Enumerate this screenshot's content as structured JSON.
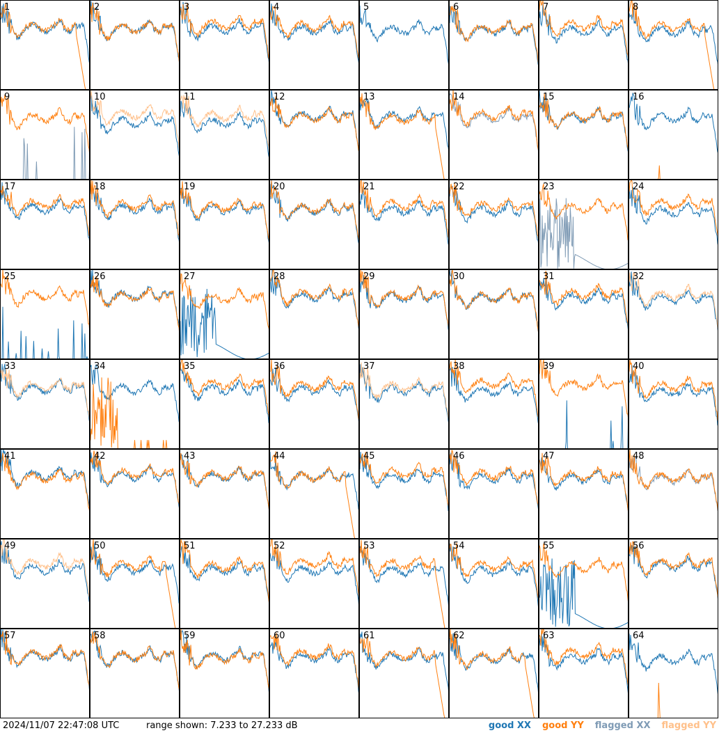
{
  "chart_data": {
    "type": "line",
    "panel_count": 64,
    "panels": [
      "1",
      "2",
      "3",
      "4",
      "5",
      "6",
      "7",
      "8",
      "9",
      "10",
      "11",
      "12",
      "13",
      "14",
      "15",
      "16",
      "17",
      "18",
      "19",
      "20",
      "21",
      "22",
      "23",
      "24",
      "25",
      "26",
      "27",
      "28",
      "29",
      "30",
      "31",
      "32",
      "33",
      "34",
      "35",
      "36",
      "37",
      "38",
      "39",
      "40",
      "41",
      "42",
      "43",
      "44",
      "45",
      "46",
      "47",
      "48",
      "49",
      "50",
      "51",
      "52",
      "53",
      "54",
      "55",
      "56",
      "57",
      "58",
      "59",
      "60",
      "61",
      "62",
      "63",
      "64"
    ],
    "ylim": [
      7.233,
      27.233
    ],
    "yunit": "dB",
    "grid": false,
    "legend_position": "bottom-right",
    "legend": [
      {
        "name": "good XX",
        "color": "#1f77b4"
      },
      {
        "name": "good YY",
        "color": "#ff7f0e"
      },
      {
        "name": "flagged XX",
        "color": "#7f9bb5"
      },
      {
        "name": "flagged YY",
        "color": "#ffc08a"
      }
    ],
    "typical_xx_db": 21.5,
    "typical_yy_db": 22.0,
    "special_panels": {
      "yy_dropout_end": [
        1,
        8,
        13,
        44,
        50,
        53,
        61,
        62
      ],
      "yy_mostly_flat_low": [
        16,
        64,
        5
      ],
      "xx_mostly_flat_low": [
        9,
        25,
        39
      ],
      "flagged_xx": [
        9,
        14,
        23,
        48
      ],
      "flagged_yy": [
        10,
        11,
        32,
        33,
        37,
        49
      ],
      "xx_spiky_low": [
        23,
        27,
        55
      ],
      "yy_spiky_low": [
        34
      ]
    }
  },
  "footer": {
    "timestamp": "2024/11/07 22:47:08 UTC",
    "range": "range shown: 7.233 to 27.233 dB"
  }
}
